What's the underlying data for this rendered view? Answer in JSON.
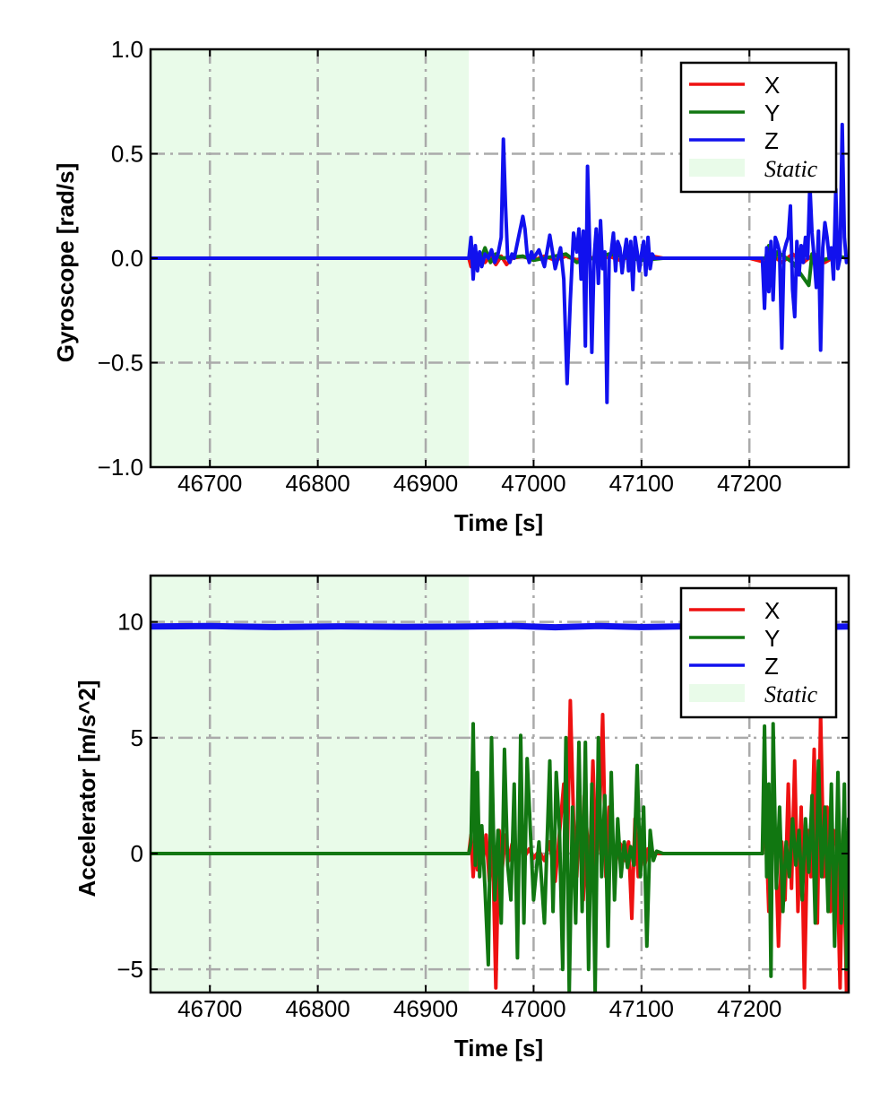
{
  "chart_data": [
    {
      "type": "line",
      "xlabel": "Time [s]",
      "ylabel": "Gyroscope [rad/s]",
      "xlim": [
        46645,
        47292
      ],
      "ylim": [
        -1.0,
        1.0
      ],
      "xticks": [
        46700,
        46800,
        46900,
        47000,
        47100,
        47200
      ],
      "xtick_labels": [
        "46700",
        "46800",
        "46900",
        "47000",
        "47100",
        "47200"
      ],
      "yticks": [
        -1.0,
        -0.5,
        0.0,
        0.5,
        1.0
      ],
      "ytick_labels": [
        "−1.0",
        "−0.5",
        "0.0",
        "0.5",
        "1.0"
      ],
      "grid": true,
      "legend_position": "top-right",
      "static_region": {
        "label": "Static",
        "x_range": [
          46645,
          46940
        ],
        "color": "#e9fbe9"
      },
      "series": [
        {
          "name": "X",
          "color": "#ee1111",
          "x": [
            46645,
            46940,
            46942,
            46945,
            46948,
            46950,
            46955,
            46960,
            46965,
            46970,
            46975,
            46980,
            46990,
            47000,
            47010,
            47020,
            47030,
            47040,
            47050,
            47060,
            47070,
            47080,
            47090,
            47100,
            47110,
            47120,
            47200,
            47215,
            47220,
            47230,
            47240,
            47250,
            47260,
            47270,
            47280,
            47292
          ],
          "y": [
            0,
            0,
            -0.04,
            0.02,
            -0.03,
            0.02,
            -0.02,
            0.01,
            -0.03,
            0.01,
            -0.03,
            0.0,
            0.01,
            -0.01,
            0.01,
            -0.01,
            0.01,
            -0.01,
            0.01,
            -0.01,
            0.01,
            -0.01,
            0.01,
            -0.01,
            0.01,
            0,
            0,
            -0.02,
            0.02,
            -0.02,
            0.02,
            -0.02,
            0.02,
            -0.02,
            0.01,
            0
          ]
        },
        {
          "name": "Y",
          "color": "#117711",
          "x": [
            46645,
            46940,
            46945,
            46950,
            46955,
            46960,
            46965,
            46970,
            46990,
            47000,
            47030,
            47040,
            47070,
            47100,
            47120,
            47200,
            47215,
            47218,
            47222,
            47226,
            47240,
            47255,
            47258,
            47262,
            47280,
            47292
          ],
          "y": [
            0,
            0,
            0.03,
            -0.02,
            0.05,
            -0.02,
            0.02,
            0,
            0.01,
            -0.01,
            0.02,
            -0.02,
            0.02,
            -0.01,
            0,
            0,
            0.0,
            0.06,
            -0.03,
            0.03,
            -0.02,
            -0.13,
            0.02,
            -0.02,
            0.01,
            0
          ]
        },
        {
          "name": "Z",
          "color": "#1111ee",
          "x": [
            46645,
            46940,
            46942,
            46944,
            46946,
            46948,
            46950,
            46952,
            46955,
            46958,
            46961,
            46964,
            46967,
            46970,
            46972,
            46974,
            46976,
            46978,
            46980,
            46982,
            46984,
            46986,
            46988,
            46990,
            46992,
            46994,
            46996,
            46998,
            47000,
            47005,
            47010,
            47015,
            47020,
            47025,
            47028,
            47031,
            47034,
            47037,
            47040,
            47042,
            47044,
            47046,
            47048,
            47050,
            47052,
            47054,
            47056,
            47058,
            47060,
            47062,
            47064,
            47066,
            47068,
            47070,
            47072,
            47074,
            47076,
            47078,
            47080,
            47082,
            47084,
            47086,
            47088,
            47090,
            47092,
            47094,
            47096,
            47098,
            47100,
            47102,
            47104,
            47106,
            47108,
            47110,
            47112,
            47120,
            47200,
            47212,
            47214,
            47216,
            47218,
            47220,
            47222,
            47224,
            47226,
            47228,
            47230,
            47232,
            47234,
            47236,
            47238,
            47240,
            47242,
            47244,
            47246,
            47248,
            47250,
            47252,
            47254,
            47256,
            47258,
            47260,
            47262,
            47264,
            47266,
            47268,
            47270,
            47272,
            47274,
            47276,
            47278,
            47280,
            47282,
            47284,
            47286,
            47288,
            47290,
            47292
          ],
          "y": [
            0,
            0,
            0.1,
            -0.1,
            0.06,
            -0.06,
            0.03,
            -0.04,
            0.02,
            0.0,
            0.04,
            -0.02,
            0.02,
            0.1,
            0.57,
            0.25,
            0.0,
            -0.02,
            0.02,
            0.0,
            0.05,
            0.1,
            0.15,
            0.2,
            0.14,
            0.02,
            -0.02,
            0.03,
            0.0,
            0.04,
            -0.04,
            0.11,
            -0.05,
            0.05,
            -0.1,
            -0.6,
            -0.2,
            0.12,
            0.03,
            0.14,
            -0.1,
            0.13,
            -0.42,
            0.44,
            0.05,
            -0.45,
            0.0,
            0.14,
            -0.12,
            0.18,
            -0.05,
            0.03,
            -0.69,
            0.0,
            0.03,
            0.12,
            -0.06,
            0.08,
            0.05,
            -0.07,
            0.02,
            0.09,
            -0.06,
            0.08,
            -0.15,
            0.1,
            0.03,
            -0.06,
            0.02,
            0.08,
            -0.08,
            0.1,
            -0.05,
            0.02,
            0.0,
            0.0,
            0.0,
            0.0,
            -0.24,
            0.05,
            -0.16,
            0.08,
            -0.2,
            0.1,
            0.07,
            0.03,
            -0.43,
            0.03,
            0.07,
            0.1,
            0.25,
            -0.15,
            -0.28,
            0.08,
            -0.08,
            0.06,
            -0.02,
            0.1,
            0.0,
            0.35,
            0.12,
            0.0,
            -0.14,
            0.13,
            -0.44,
            0.05,
            0.17,
            0.1,
            0.0,
            0.05,
            -0.1,
            0.33,
            -0.05,
            0.0,
            0.64,
            0.1,
            -0.02,
            0.0
          ]
        }
      ]
    },
    {
      "type": "line",
      "xlabel": "Time [s]",
      "ylabel": "Accelerator [m/s^2]",
      "xlim": [
        46645,
        47292
      ],
      "ylim": [
        -6,
        12
      ],
      "xticks": [
        46700,
        46800,
        46900,
        47000,
        47100,
        47200
      ],
      "xtick_labels": [
        "46700",
        "46800",
        "46900",
        "47000",
        "47100",
        "47200"
      ],
      "yticks": [
        -5,
        0,
        5,
        10
      ],
      "ytick_labels": [
        "−5",
        "0",
        "5",
        "10"
      ],
      "grid": true,
      "legend_position": "top-right",
      "static_region": {
        "label": "Static",
        "x_range": [
          46645,
          46940
        ],
        "color": "#e9fbe9"
      },
      "series": [
        {
          "name": "X",
          "color": "#ee1111",
          "x": [
            46645,
            46940,
            46942,
            46944,
            46946,
            46948,
            46950,
            46953,
            46956,
            46959,
            46962,
            46965,
            46968,
            46971,
            46974,
            46977,
            46980,
            46984,
            46988,
            46992,
            46996,
            47000,
            47005,
            47010,
            47015,
            47020,
            47025,
            47028,
            47031,
            47034,
            47037,
            47040,
            47043,
            47046,
            47049,
            47052,
            47055,
            47058,
            47061,
            47064,
            47067,
            47070,
            47073,
            47076,
            47079,
            47082,
            47085,
            47088,
            47091,
            47094,
            47097,
            47100,
            47103,
            47106,
            47109,
            47112,
            47115,
            47120,
            47200,
            47212,
            47215,
            47218,
            47221,
            47224,
            47227,
            47230,
            47233,
            47236,
            47239,
            47242,
            47245,
            47248,
            47251,
            47254,
            47257,
            47260,
            47263,
            47266,
            47269,
            47272,
            47275,
            47278,
            47281,
            47284,
            47287,
            47290,
            47292
          ],
          "y": [
            0,
            0,
            0.8,
            -1.0,
            0.5,
            -0.7,
            0.6,
            -0.4,
            0.8,
            -1.2,
            0.5,
            -5.8,
            1.0,
            -0.6,
            0.8,
            -0.3,
            0.4,
            -0.2,
            0.2,
            -0.1,
            0.2,
            -0.2,
            0.1,
            -0.3,
            0.5,
            -1.2,
            1.4,
            3.0,
            -0.6,
            6.6,
            1.5,
            -1.0,
            2.5,
            -2.0,
            1.2,
            -0.8,
            4.0,
            -0.5,
            1.5,
            6.0,
            -1.0,
            2.0,
            0.2,
            -0.5,
            0.5,
            0.3,
            -0.3,
            0.5,
            -2.8,
            1.5,
            -1.0,
            0.5,
            -0.5,
            0.2,
            0.1,
            0.0,
            0.0,
            0.0,
            0.0,
            0.0,
            1.5,
            -2.5,
            2.0,
            0.8,
            -4.0,
            0.5,
            -2.0,
            3.0,
            -1.5,
            4.0,
            -2.5,
            2.0,
            -5.8,
            1.0,
            -1.0,
            4.5,
            -3.0,
            6.0,
            -1.0,
            2.0,
            -2.5,
            1.0,
            0.3,
            -5.8,
            1.0,
            -6.0,
            1.2
          ]
        },
        {
          "name": "Y",
          "color": "#117711",
          "x": [
            46645,
            46940,
            46942,
            46944,
            46946,
            46948,
            46950,
            46952,
            46955,
            46958,
            46961,
            46964,
            46967,
            46970,
            46973,
            46976,
            46979,
            46982,
            46985,
            46988,
            46991,
            46994,
            46997,
            47000,
            47005,
            47010,
            47015,
            47018,
            47021,
            47024,
            47027,
            47030,
            47033,
            47036,
            47039,
            47042,
            47045,
            47048,
            47051,
            47054,
            47057,
            47060,
            47063,
            47066,
            47069,
            47072,
            47075,
            47078,
            47081,
            47084,
            47087,
            47090,
            47093,
            47096,
            47099,
            47102,
            47105,
            47108,
            47111,
            47114,
            47120,
            47200,
            47212,
            47214,
            47216,
            47218,
            47220,
            47222,
            47225,
            47228,
            47231,
            47234,
            47237,
            47240,
            47243,
            47246,
            47249,
            47252,
            47255,
            47258,
            47261,
            47264,
            47267,
            47270,
            47273,
            47276,
            47279,
            47282,
            47285,
            47288,
            47290,
            47292
          ],
          "y": [
            0,
            0,
            0.5,
            5.6,
            -0.5,
            3.5,
            -1.0,
            1.2,
            -1.5,
            -4.8,
            5.0,
            -2.0,
            1.0,
            -3.0,
            4.5,
            -0.5,
            -2.0,
            3.0,
            -4.5,
            5.1,
            -3.0,
            4.1,
            1.0,
            -2.0,
            0.5,
            -3.0,
            4.0,
            -2.5,
            3.5,
            1.0,
            -5.0,
            5.0,
            -6.0,
            2.0,
            -3.0,
            4.8,
            -2.5,
            4.8,
            -5.0,
            3.0,
            -6.0,
            5.0,
            -1.0,
            2.5,
            -4.0,
            3.5,
            -2.0,
            1.5,
            -1.0,
            0.5,
            -0.6,
            0.3,
            -0.5,
            3.8,
            -1.0,
            2.0,
            -4.0,
            1.0,
            -0.3,
            0.1,
            0.0,
            0.0,
            0.0,
            5.5,
            -1.0,
            3.0,
            -5.3,
            5.6,
            -1.5,
            2.0,
            -2.5,
            0.5,
            -1.0,
            1.5,
            -0.5,
            1.0,
            -2.0,
            1.5,
            -0.8,
            2.5,
            -3.0,
            4.0,
            -1.0,
            2.0,
            -2.5,
            3.0,
            -4.0,
            3.5,
            -3.0,
            3.0,
            -5.0,
            1.5
          ]
        },
        {
          "name": "Z",
          "color": "#1111ee",
          "x": [
            46645,
            46700,
            46760,
            46820,
            46880,
            46940,
            46980,
            47020,
            47060,
            47100,
            47140,
            47180,
            47220,
            47260,
            47292
          ],
          "y": [
            9.8,
            9.82,
            9.78,
            9.81,
            9.79,
            9.8,
            9.83,
            9.77,
            9.82,
            9.78,
            9.81,
            9.8,
            9.83,
            9.78,
            9.8
          ]
        }
      ]
    }
  ]
}
